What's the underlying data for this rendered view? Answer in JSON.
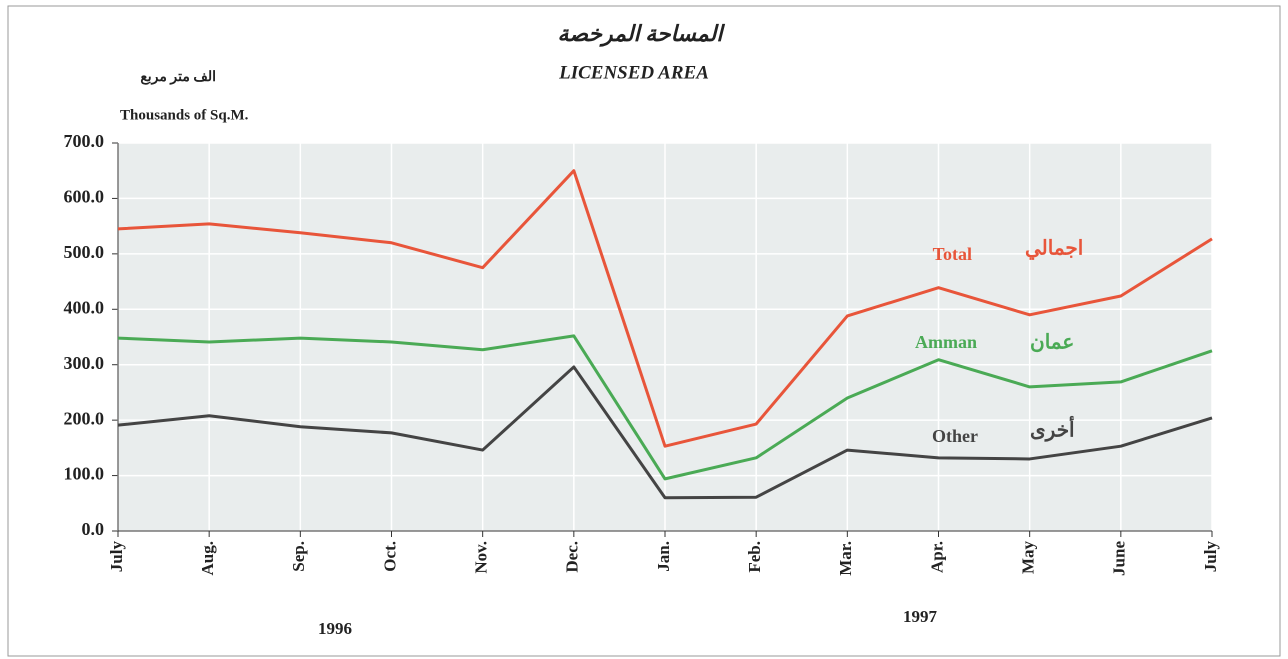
{
  "chart_data": {
    "type": "line",
    "title": "LICENSED AREA",
    "title_arabic": "المساحة المرخصة",
    "y_label": "Thousands of Sq.M.",
    "y_label_arabic": "الف متر مربع",
    "categories": [
      "July",
      "Aug.",
      "Sep.",
      "Oct.",
      "Nov.",
      "Dec.",
      "Jan.",
      "Feb.",
      "Mar.",
      "Apr.",
      "May",
      "June",
      "July"
    ],
    "year_labels": [
      "1996",
      "1997"
    ],
    "series": [
      {
        "name": "Total",
        "name_arabic": "اجمالي",
        "color": "#e8553a",
        "values": [
          545,
          554,
          538,
          520,
          475,
          650,
          153,
          193,
          388,
          439,
          390,
          424,
          527
        ]
      },
      {
        "name": "Amman",
        "name_arabic": "عمان",
        "color": "#4aaa55",
        "values": [
          348,
          341,
          348,
          341,
          327,
          352,
          94,
          132,
          240,
          309,
          260,
          269,
          325
        ]
      },
      {
        "name": "Other",
        "name_arabic": "أخرى",
        "color": "#444444",
        "values": [
          191,
          208,
          188,
          177,
          146,
          296,
          60,
          61,
          146,
          132,
          130,
          153,
          204
        ]
      }
    ],
    "ylim": [
      0,
      700
    ],
    "yticks": [
      {
        "value": 0,
        "label": "0.0"
      },
      {
        "value": 100,
        "label": "100.0"
      },
      {
        "value": 200,
        "label": "200.0"
      },
      {
        "value": 300,
        "label": "300.0"
      },
      {
        "value": 400,
        "label": "400.0"
      },
      {
        "value": 500,
        "label": "500.0"
      },
      {
        "value": 600,
        "label": "600.0"
      },
      {
        "value": 700,
        "label": "700.0"
      }
    ],
    "grid": true
  }
}
